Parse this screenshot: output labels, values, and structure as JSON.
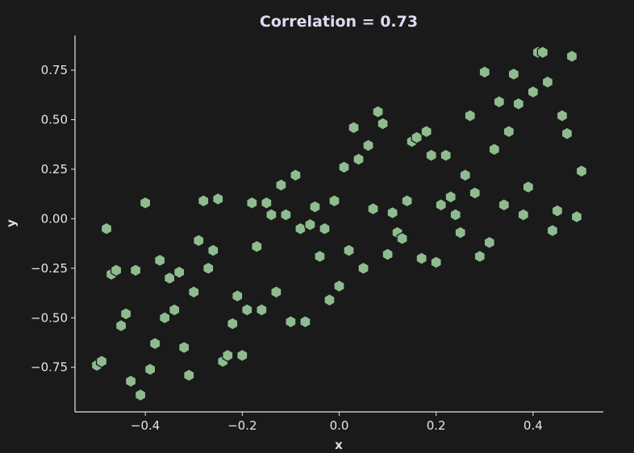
{
  "chart_data": {
    "type": "scatter",
    "title": "Correlation = 0.73",
    "xlabel": "x",
    "ylabel": "y",
    "xlim": [
      -0.545,
      0.545
    ],
    "ylim": [
      -0.975,
      0.925
    ],
    "xticks": [
      -0.4,
      -0.2,
      0.0,
      0.2,
      0.4
    ],
    "xtick_labels": [
      "−0.4",
      "−0.2",
      "0.0",
      "0.2",
      "0.4"
    ],
    "yticks": [
      -0.75,
      -0.5,
      -0.25,
      0.0,
      0.25,
      0.5,
      0.75
    ],
    "ytick_labels": [
      "−0.75",
      "−0.50",
      "−0.25",
      "0.00",
      "0.25",
      "0.50",
      "0.75"
    ],
    "grid": false,
    "marker": "hexagon",
    "colors": {
      "background": "#1a1a1a",
      "marker": "#8fbc8f",
      "edge": "#1a1a1a"
    },
    "points": [
      [
        -0.5,
        -0.74
      ],
      [
        -0.49,
        -0.72
      ],
      [
        -0.48,
        -0.05
      ],
      [
        -0.47,
        -0.28
      ],
      [
        -0.46,
        -0.26
      ],
      [
        -0.45,
        -0.54
      ],
      [
        -0.44,
        -0.48
      ],
      [
        -0.43,
        -0.82
      ],
      [
        -0.42,
        -0.26
      ],
      [
        -0.41,
        -0.89
      ],
      [
        -0.4,
        0.08
      ],
      [
        -0.39,
        -0.76
      ],
      [
        -0.38,
        -0.63
      ],
      [
        -0.37,
        -0.21
      ],
      [
        -0.36,
        -0.5
      ],
      [
        -0.35,
        -0.3
      ],
      [
        -0.34,
        -0.46
      ],
      [
        -0.33,
        -0.27
      ],
      [
        -0.32,
        -0.65
      ],
      [
        -0.31,
        -0.79
      ],
      [
        -0.3,
        -0.37
      ],
      [
        -0.29,
        -0.11
      ],
      [
        -0.28,
        0.09
      ],
      [
        -0.27,
        -0.25
      ],
      [
        -0.26,
        -0.16
      ],
      [
        -0.25,
        0.1
      ],
      [
        -0.24,
        -0.72
      ],
      [
        -0.23,
        -0.69
      ],
      [
        -0.22,
        -0.53
      ],
      [
        -0.21,
        -0.39
      ],
      [
        -0.2,
        -0.69
      ],
      [
        -0.19,
        -0.46
      ],
      [
        -0.18,
        0.08
      ],
      [
        -0.17,
        -0.14
      ],
      [
        -0.16,
        -0.46
      ],
      [
        -0.15,
        0.08
      ],
      [
        -0.14,
        0.02
      ],
      [
        -0.13,
        -0.37
      ],
      [
        -0.12,
        0.17
      ],
      [
        -0.11,
        0.02
      ],
      [
        -0.1,
        -0.52
      ],
      [
        -0.09,
        0.22
      ],
      [
        -0.08,
        -0.05
      ],
      [
        -0.07,
        -0.52
      ],
      [
        -0.06,
        -0.03
      ],
      [
        -0.05,
        0.06
      ],
      [
        -0.04,
        -0.19
      ],
      [
        -0.03,
        -0.05
      ],
      [
        -0.02,
        -0.41
      ],
      [
        -0.01,
        0.09
      ],
      [
        0.0,
        -0.34
      ],
      [
        0.01,
        0.26
      ],
      [
        0.02,
        -0.16
      ],
      [
        0.03,
        0.46
      ],
      [
        0.04,
        0.3
      ],
      [
        0.05,
        -0.25
      ],
      [
        0.06,
        0.37
      ],
      [
        0.07,
        0.05
      ],
      [
        0.08,
        0.54
      ],
      [
        0.09,
        0.48
      ],
      [
        0.1,
        -0.18
      ],
      [
        0.11,
        0.03
      ],
      [
        0.12,
        -0.07
      ],
      [
        0.13,
        -0.1
      ],
      [
        0.14,
        0.09
      ],
      [
        0.15,
        0.39
      ],
      [
        0.16,
        0.41
      ],
      [
        0.17,
        -0.2
      ],
      [
        0.18,
        0.44
      ],
      [
        0.19,
        0.32
      ],
      [
        0.2,
        -0.22
      ],
      [
        0.21,
        0.07
      ],
      [
        0.22,
        0.32
      ],
      [
        0.23,
        0.11
      ],
      [
        0.24,
        0.02
      ],
      [
        0.25,
        -0.07
      ],
      [
        0.26,
        0.22
      ],
      [
        0.27,
        0.52
      ],
      [
        0.28,
        0.13
      ],
      [
        0.29,
        -0.19
      ],
      [
        0.3,
        0.74
      ],
      [
        0.31,
        -0.12
      ],
      [
        0.32,
        0.35
      ],
      [
        0.33,
        0.59
      ],
      [
        0.34,
        0.07
      ],
      [
        0.35,
        0.44
      ],
      [
        0.36,
        0.73
      ],
      [
        0.37,
        0.58
      ],
      [
        0.38,
        0.02
      ],
      [
        0.39,
        0.16
      ],
      [
        0.4,
        0.64
      ],
      [
        0.41,
        0.84
      ],
      [
        0.42,
        0.84
      ],
      [
        0.43,
        0.69
      ],
      [
        0.44,
        -0.06
      ],
      [
        0.45,
        0.04
      ],
      [
        0.46,
        0.52
      ],
      [
        0.47,
        0.43
      ],
      [
        0.48,
        0.82
      ],
      [
        0.49,
        0.01
      ],
      [
        0.5,
        0.24
      ]
    ]
  }
}
